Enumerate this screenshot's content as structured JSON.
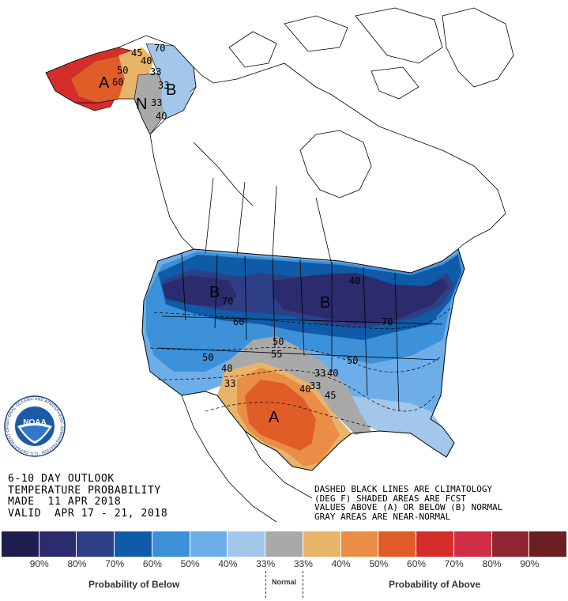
{
  "outlook": {
    "line1": "6-10 DAY OUTLOOK",
    "line2": "TEMPERATURE PROBABILITY",
    "line3": "MADE  11 APR 2018",
    "line4": "VALID  APR 17 - 21, 2018"
  },
  "note": {
    "line1": "DASHED BLACK LINES ARE CLIMATOLOGY",
    "line2": "(DEG F) SHADED AREAS ARE FCST",
    "line3": "VALUES ABOVE (A) OR BELOW (B) NORMAL",
    "line4": "GRAY AREAS ARE NEAR-NORMAL"
  },
  "map_labels": {
    "A_alaska": "A",
    "B_alaska": "B",
    "N_alaska": "N",
    "B_west": "B",
    "B_east": "B",
    "A_south": "A",
    "ak_50": "50",
    "ak_40": "40",
    "ak_33a": "33",
    "ak_33b": "33",
    "ak_33c": "33",
    "ak_40b": "40",
    "ak_60": "60",
    "ak_70": "70",
    "ak_45": "45",
    "us_70w": "70",
    "us_60": "60",
    "us_50": "50",
    "us_40w": "40",
    "us_33w": "33",
    "us_50c": "50",
    "us_55": "55",
    "us_33c": "33",
    "us_40c": "40",
    "us_33s": "33",
    "us_40s": "40",
    "us_45": "45",
    "us_50e": "50",
    "us_70e": "70",
    "us_40e": "40"
  },
  "legend": {
    "colors": [
      "#1f1f4f",
      "#2b2b6e",
      "#2e3f86",
      "#0f5ba8",
      "#3c91d9",
      "#6eaee8",
      "#a3c7ea",
      "#a9a9a9",
      "#e8b46a",
      "#e98d47",
      "#e05d28",
      "#d42e2a",
      "#cf2e45",
      "#8f2530",
      "#6a1f22"
    ],
    "labels": [
      "90%",
      "80%",
      "70%",
      "60%",
      "50%",
      "40%",
      "33%",
      "33%",
      "40%",
      "50%",
      "60%",
      "70%",
      "80%",
      "90%"
    ],
    "below_label": "Probability of Below",
    "normal_label": "Normal",
    "above_label": "Probability of Above"
  },
  "logo": {
    "text": "NOAA",
    "ring_text": "NATIONAL OCEANIC AND ATMOSPHERIC ADMINISTRATION · U.S. DEPARTMENT OF COMMERCE"
  }
}
